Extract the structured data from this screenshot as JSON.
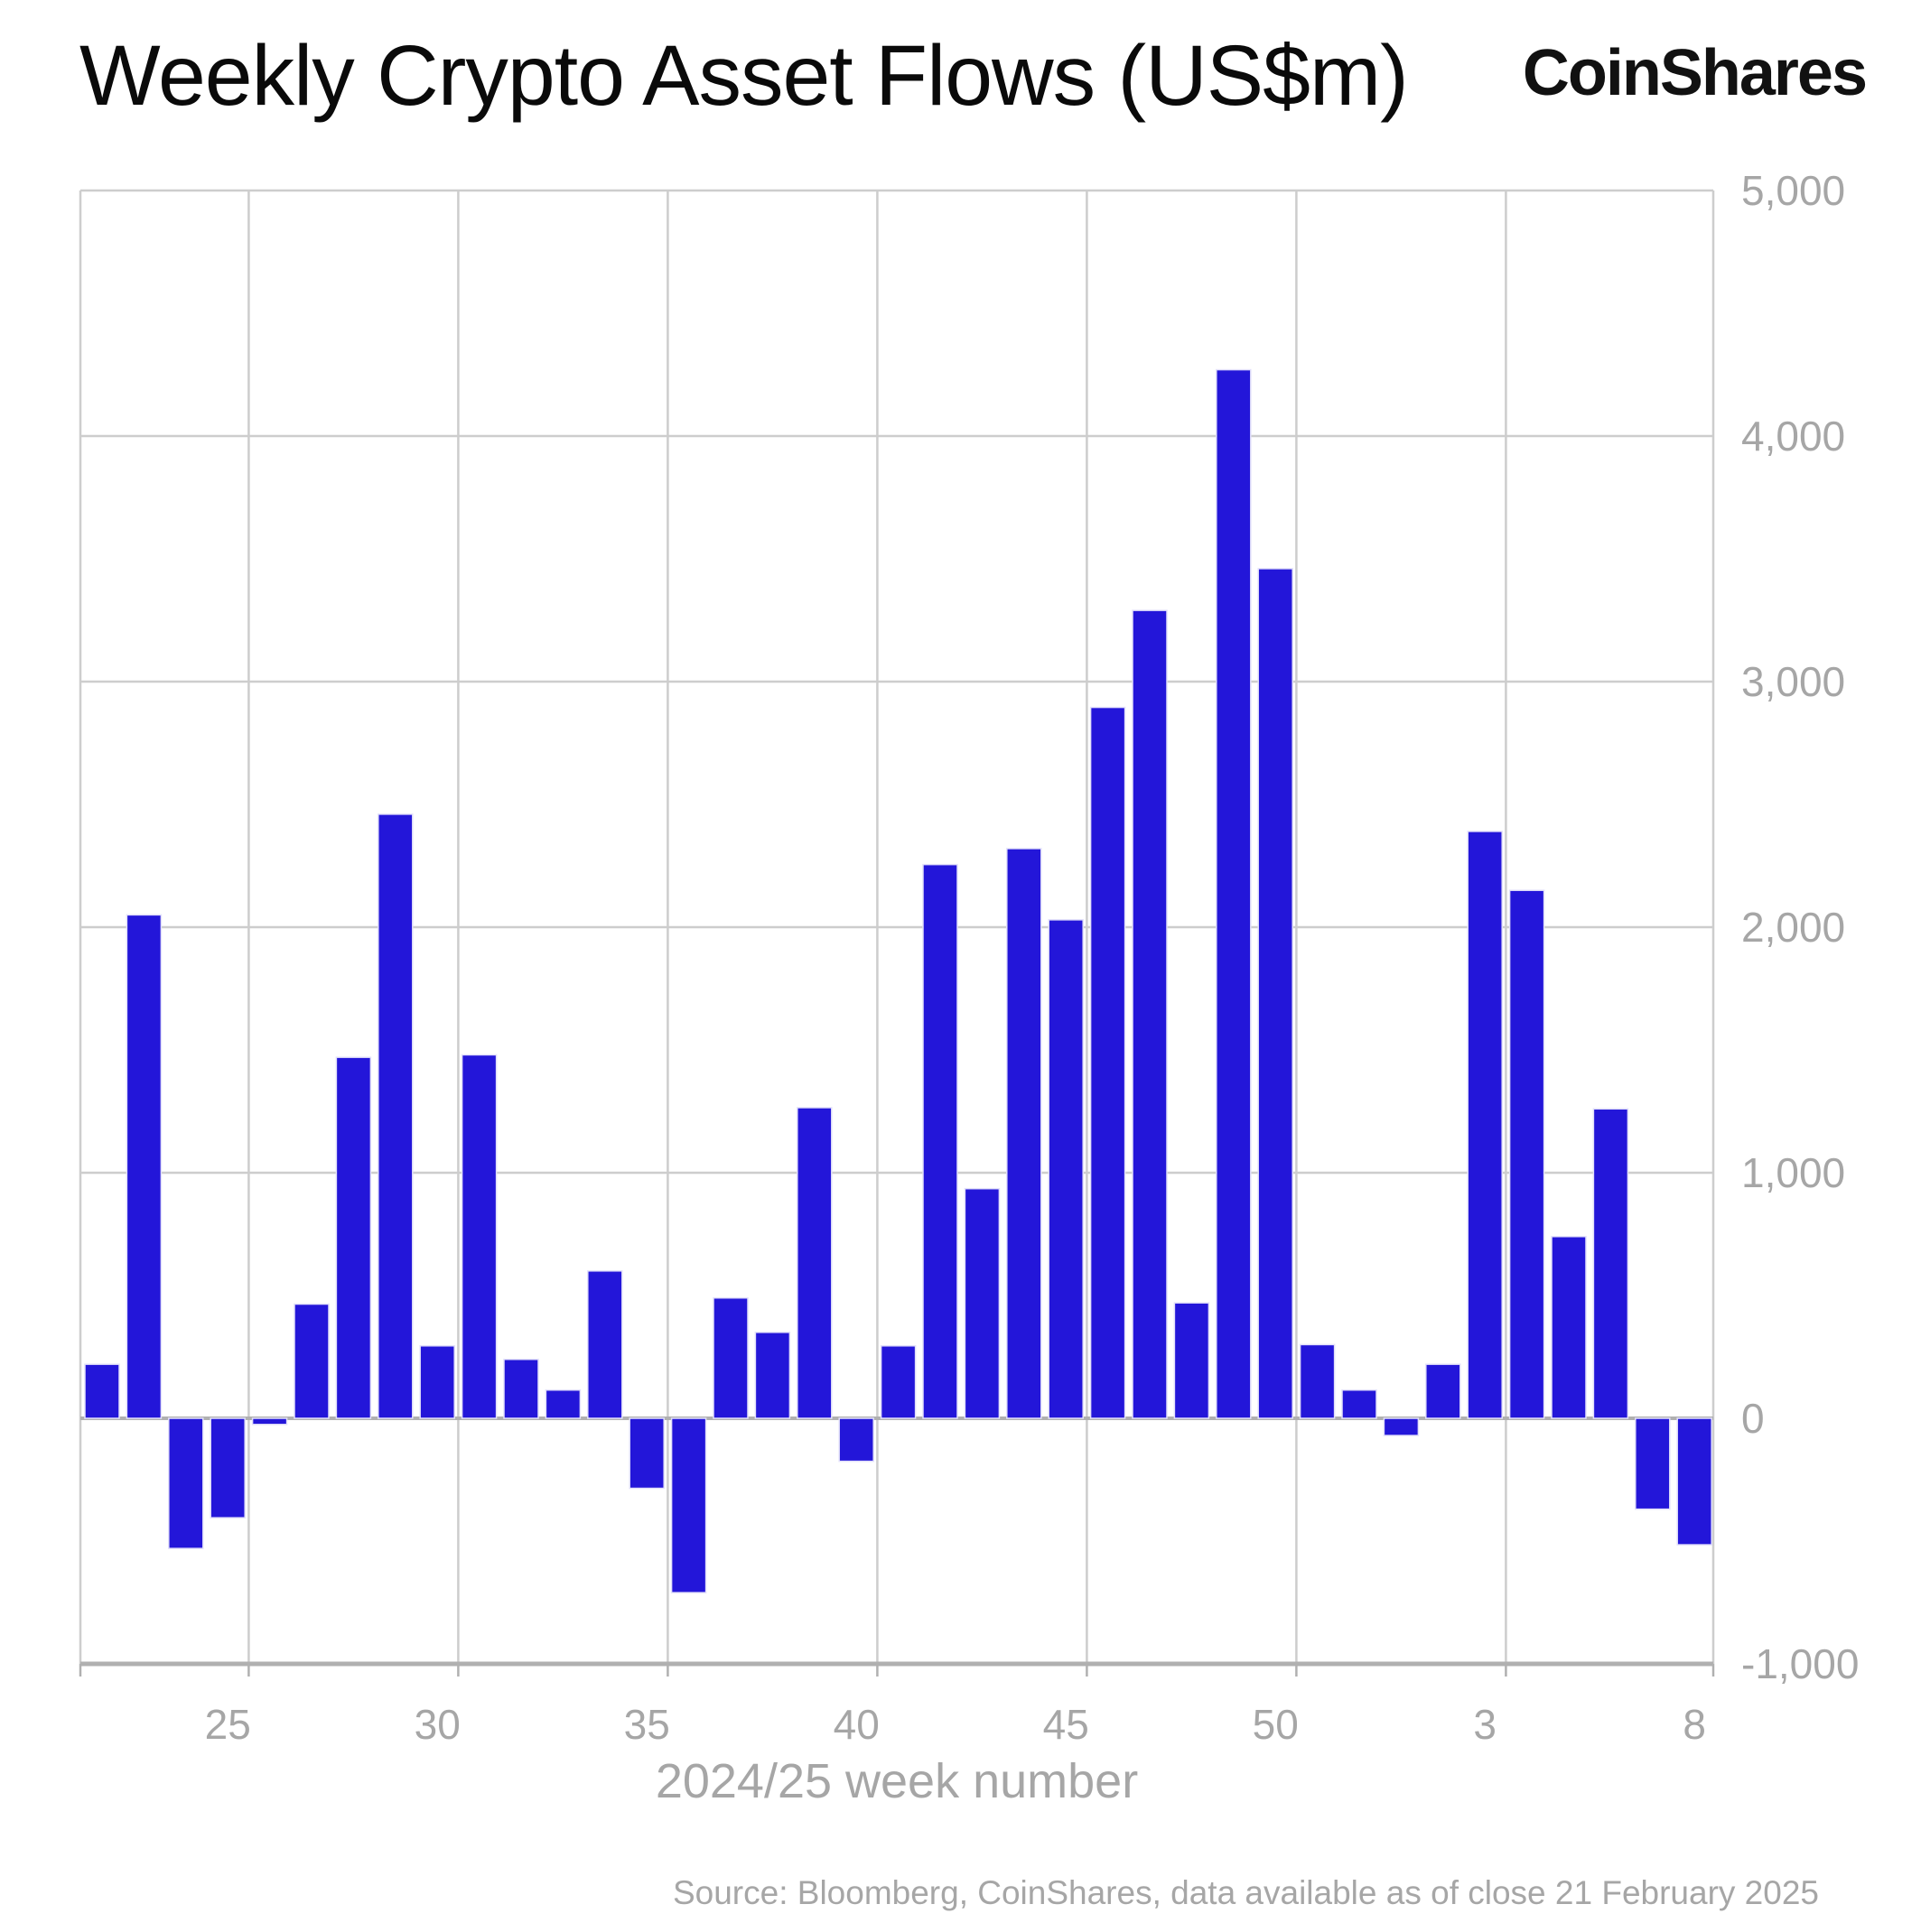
{
  "header": {
    "brand": "CoinShares"
  },
  "chart_data": {
    "type": "bar",
    "title": "Weekly Crypto Asset Flows (US$m)",
    "xlabel": "2024/25 week number",
    "categories": [
      "22",
      "23",
      "24",
      "25",
      "26",
      "27",
      "28",
      "29",
      "30",
      "31",
      "32",
      "33",
      "34",
      "35",
      "36",
      "37",
      "38",
      "39",
      "40",
      "41",
      "42",
      "43",
      "44",
      "45",
      "46",
      "47",
      "48",
      "49",
      "50",
      "51",
      "52",
      "1",
      "2",
      "3",
      "4",
      "5",
      "6",
      "7",
      "8"
    ],
    "values": [
      220,
      2050,
      -530,
      -405,
      -25,
      465,
      1470,
      2460,
      295,
      1480,
      240,
      115,
      600,
      -285,
      -710,
      490,
      350,
      1265,
      -175,
      295,
      2255,
      935,
      2320,
      2030,
      2895,
      3290,
      470,
      4270,
      3460,
      300,
      115,
      -70,
      220,
      2390,
      2150,
      740,
      1260,
      -370,
      -515
    ],
    "x_tick_labels": [
      "25",
      "30",
      "35",
      "40",
      "45",
      "50",
      "3",
      "8"
    ],
    "x_tick_indices": [
      3,
      8,
      13,
      18,
      23,
      28,
      33,
      38
    ],
    "y_ticks": [
      -1000,
      0,
      1000,
      2000,
      3000,
      4000,
      5000
    ],
    "y_tick_labels": [
      "-1,000",
      "0",
      "1,000",
      "2,000",
      "3,000",
      "4,000",
      "5,000"
    ],
    "ylim": [
      -1000,
      5000
    ],
    "grid": true,
    "legend": false,
    "bar_color": "#2316d9",
    "bar_edge_color": "#e2e0fa",
    "grid_color": "#cdcdcd",
    "axis_line_color": "#b0b0b0",
    "tick_label_color": "#a6a6a6"
  },
  "footer": {
    "source": "Source: Bloomberg, CoinShares, data available as of close 21 February 2025"
  }
}
